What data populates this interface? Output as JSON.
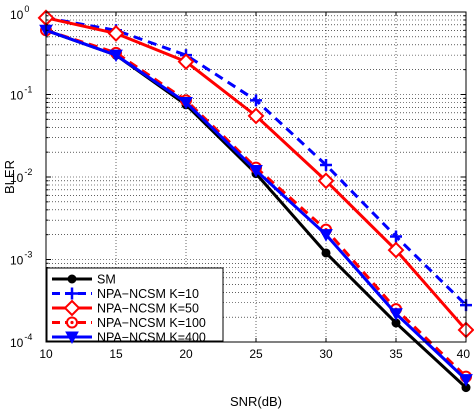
{
  "chart_data": {
    "type": "line",
    "title": "",
    "xlabel": "SNR(dB)",
    "ylabel": "BLER",
    "xlim": [
      10,
      40
    ],
    "ylim": [
      0.0001,
      1
    ],
    "yscale": "log",
    "grid": true,
    "legend_position": "bottom-left",
    "x_ticks": [
      10,
      15,
      20,
      25,
      30,
      35,
      40
    ],
    "x_tick_labels": [
      "10",
      "15",
      "20",
      "25",
      "30",
      "35",
      "40"
    ],
    "y_ticks": [
      0.0001,
      0.001,
      0.01,
      0.1,
      1
    ],
    "y_tick_bases": [
      "10",
      "10",
      "10",
      "10",
      "10"
    ],
    "y_tick_exponents": [
      "-4",
      "-3",
      "-2",
      "-1",
      "0"
    ],
    "x": [
      10,
      15,
      20,
      25,
      30,
      35,
      40
    ],
    "series": [
      {
        "name": "SM",
        "values": [
          0.6,
          0.3,
          0.075,
          0.011,
          0.0012,
          0.00017,
          2.8e-05
        ],
        "color": "#000000",
        "dash": "solid",
        "marker": "dot"
      },
      {
        "name": "NPA−NCSM K=10",
        "values": [
          0.85,
          0.6,
          0.3,
          0.085,
          0.014,
          0.0019,
          0.00028
        ],
        "color": "#0000ff",
        "dash": "dashed",
        "marker": "plus"
      },
      {
        "name": "NPA−NCSM K=50",
        "values": [
          0.85,
          0.55,
          0.25,
          0.055,
          0.009,
          0.0013,
          0.00014
        ],
        "color": "#ff0000",
        "dash": "solid",
        "marker": "diamond"
      },
      {
        "name": "NPA−NCSM K=100",
        "values": [
          0.6,
          0.32,
          0.085,
          0.013,
          0.0023,
          0.00025,
          3.8e-05
        ],
        "color": "#ff0000",
        "dash": "dashed",
        "marker": "circle-open"
      },
      {
        "name": "NPA−NCSM K=400",
        "values": [
          0.6,
          0.3,
          0.08,
          0.012,
          0.002,
          0.00022,
          3.5e-05
        ],
        "color": "#0000ff",
        "dash": "solid",
        "marker": "triangle-down"
      }
    ]
  }
}
